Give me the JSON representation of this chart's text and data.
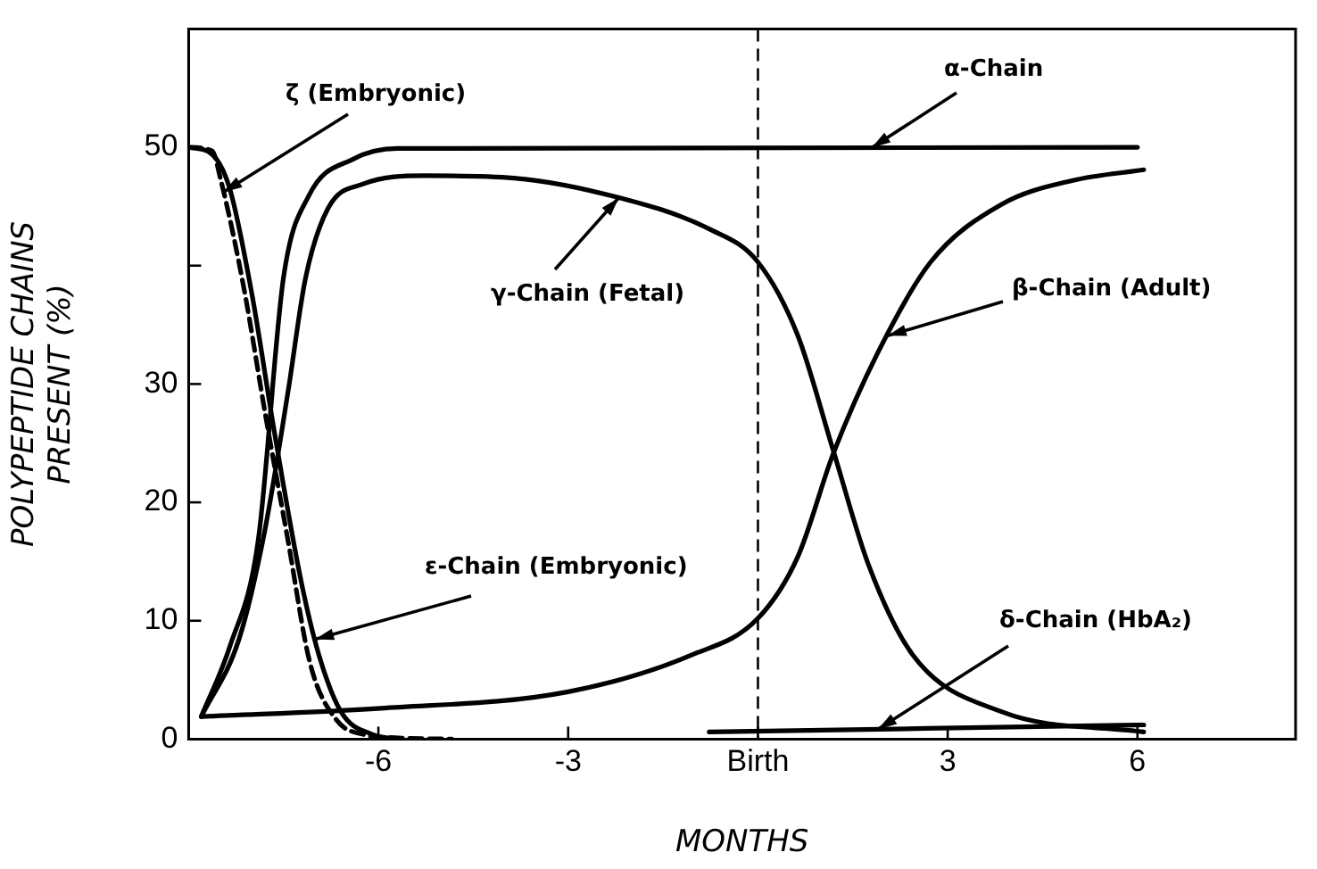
{
  "chart_data": {
    "type": "line",
    "xlabel": "MONTHS",
    "ylabel": "POLYPEPTIDE CHAINS\nPRESENT (%)",
    "xlim": [
      -9,
      8.5
    ],
    "ylim": [
      0,
      60
    ],
    "xticks": [
      -6,
      -3,
      {
        "value": 0,
        "label": "Birth"
      },
      3,
      6
    ],
    "yticks": [
      0,
      10,
      20,
      30,
      {
        "value": 40,
        "label": null
      },
      50
    ],
    "grid": false,
    "legend": false,
    "marker": "none",
    "ref_lines": [
      {
        "axis": "x",
        "value": 0,
        "line_style": "dashed",
        "color": "#000000"
      }
    ],
    "series": [
      {
        "name": "α-Chain",
        "color": "#000000",
        "line_style": "solid",
        "x": [
          -8.8,
          -8.35,
          -7.9,
          -7.5,
          -7.1,
          -6.4,
          -5.7,
          6
        ],
        "values": [
          1.9,
          7.8,
          16.8,
          39,
          45.9,
          49,
          49.9,
          50
        ]
      },
      {
        "name": "γ-Chain (Fetal)",
        "color": "#000000",
        "line_style": "solid",
        "x": [
          -8.8,
          -8.2,
          -7.8,
          -7.43,
          -7.15,
          -6.8,
          -6.24,
          -5.26,
          -3.86,
          -2.17,
          -0.77,
          0,
          0.63,
          1.19,
          1.75,
          2.45,
          3.86,
          6.1
        ],
        "values": [
          1.9,
          8.5,
          17.5,
          29.3,
          39,
          44.8,
          46.9,
          47.6,
          47.4,
          45.7,
          43.1,
          40.3,
          34.1,
          24.4,
          14.7,
          7.1,
          2.3,
          0.6
        ]
      },
      {
        "name": "β-Chain (Adult)",
        "color": "#000000",
        "line_style": "solid",
        "x": [
          -8.8,
          -5.96,
          -3,
          -1.05,
          0,
          0.63,
          1.19,
          1.9,
          2.73,
          3.86,
          4.98,
          6.1
        ],
        "values": [
          1.9,
          2.6,
          4,
          7.1,
          10.2,
          15.4,
          24.1,
          32.7,
          40.3,
          45.2,
          47.2,
          48.1
        ]
      },
      {
        "name": "ζ (Embryonic)",
        "color": "#000000",
        "line_style": "dashed",
        "x": [
          -9,
          -8.63,
          -8.49,
          -8.13,
          -7.78,
          -7.43,
          -7.08,
          -6.66,
          -6.24,
          -5.68,
          -4.84
        ],
        "values": [
          50,
          49.7,
          47.2,
          38.2,
          27.2,
          16.8,
          6.4,
          1.6,
          0.4,
          0.1,
          0
        ]
      },
      {
        "name": "ε-Chain (Embryonic)",
        "color": "#000000",
        "line_style": "solid",
        "x": [
          -9,
          -8.63,
          -8.35,
          -8,
          -7.64,
          -7.22,
          -6.94,
          -6.59,
          -6.1,
          -5.68
        ],
        "values": [
          50,
          49.4,
          46.5,
          37.6,
          25.8,
          13.3,
          7.1,
          2.3,
          0.4,
          0
        ]
      },
      {
        "name": "δ-Chain (HbA₂)",
        "color": "#000000",
        "line_style": "solid",
        "x": [
          -0.77,
          6.1
        ],
        "values": [
          0.6,
          1.2
        ]
      }
    ]
  }
}
